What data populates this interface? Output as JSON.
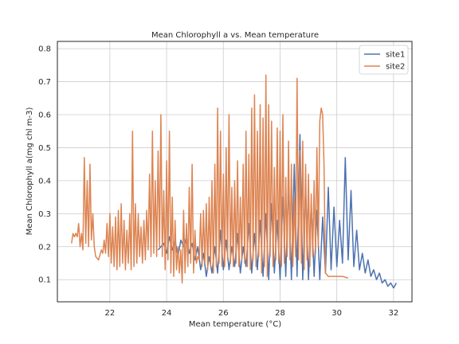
{
  "chart_data": {
    "type": "line",
    "title": "Mean Chlorophyll a vs. Mean temperature",
    "xlabel": "Mean temperature (°C)",
    "ylabel": "Mean Chlorophyll a(mg chl m-3)",
    "xlim": [
      20.15,
      32.65
    ],
    "ylim": [
      0.033,
      0.822
    ],
    "xticks": [
      22,
      24,
      26,
      28,
      30,
      32
    ],
    "yticks": [
      0.1,
      0.2,
      0.3,
      0.4,
      0.5,
      0.6,
      0.7,
      0.8
    ],
    "xtick_labels": [
      "22",
      "24",
      "26",
      "28",
      "30",
      "32"
    ],
    "ytick_labels": [
      "0.1",
      "0.2",
      "0.3",
      "0.4",
      "0.5",
      "0.6",
      "0.7",
      "0.8"
    ],
    "grid": true,
    "legend_position": "top-right",
    "series": [
      {
        "name": "site1",
        "color": "#4c72b0",
        "points": [
          [
            23.7,
            0.19
          ],
          [
            23.9,
            0.21
          ],
          [
            24.0,
            0.18
          ],
          [
            24.1,
            0.23
          ],
          [
            24.2,
            0.19
          ],
          [
            24.3,
            0.22
          ],
          [
            24.4,
            0.17
          ],
          [
            24.5,
            0.22
          ],
          [
            24.6,
            0.2
          ],
          [
            24.7,
            0.23
          ],
          [
            24.8,
            0.18
          ],
          [
            24.9,
            0.21
          ],
          [
            25.0,
            0.16
          ],
          [
            25.1,
            0.2
          ],
          [
            25.2,
            0.13
          ],
          [
            25.3,
            0.18
          ],
          [
            25.4,
            0.11
          ],
          [
            25.5,
            0.17
          ],
          [
            25.6,
            0.12
          ],
          [
            25.7,
            0.2
          ],
          [
            25.8,
            0.12
          ],
          [
            25.9,
            0.25
          ],
          [
            26.0,
            0.13
          ],
          [
            26.1,
            0.22
          ],
          [
            26.2,
            0.13
          ],
          [
            26.3,
            0.2
          ],
          [
            26.4,
            0.14
          ],
          [
            26.5,
            0.24
          ],
          [
            26.6,
            0.12
          ],
          [
            26.7,
            0.2
          ],
          [
            26.8,
            0.14
          ],
          [
            26.9,
            0.27
          ],
          [
            27.0,
            0.12
          ],
          [
            27.1,
            0.24
          ],
          [
            27.2,
            0.13
          ],
          [
            27.3,
            0.28
          ],
          [
            27.4,
            0.11
          ],
          [
            27.5,
            0.3
          ],
          [
            27.6,
            0.1
          ],
          [
            27.7,
            0.33
          ],
          [
            27.8,
            0.12
          ],
          [
            27.9,
            0.28
          ],
          [
            28.0,
            0.1
          ],
          [
            28.1,
            0.35
          ],
          [
            28.2,
            0.11
          ],
          [
            28.3,
            0.39
          ],
          [
            28.4,
            0.1
          ],
          [
            28.5,
            0.45
          ],
          [
            28.6,
            0.11
          ],
          [
            28.7,
            0.54
          ],
          [
            28.8,
            0.1
          ],
          [
            28.9,
            0.38
          ],
          [
            29.0,
            0.1
          ],
          [
            29.1,
            0.33
          ],
          [
            29.2,
            0.11
          ],
          [
            29.3,
            0.31
          ],
          [
            29.4,
            0.1
          ],
          [
            29.5,
            0.29
          ],
          [
            29.6,
            0.12
          ],
          [
            29.7,
            0.38
          ],
          [
            29.8,
            0.13
          ],
          [
            29.9,
            0.32
          ],
          [
            30.0,
            0.14
          ],
          [
            30.1,
            0.28
          ],
          [
            30.2,
            0.15
          ],
          [
            30.3,
            0.47
          ],
          [
            30.4,
            0.16
          ],
          [
            30.5,
            0.37
          ],
          [
            30.6,
            0.14
          ],
          [
            30.7,
            0.25
          ],
          [
            30.8,
            0.13
          ],
          [
            30.9,
            0.18
          ],
          [
            31.0,
            0.12
          ],
          [
            31.1,
            0.16
          ],
          [
            31.2,
            0.11
          ],
          [
            31.3,
            0.13
          ],
          [
            31.4,
            0.1
          ],
          [
            31.5,
            0.12
          ],
          [
            31.6,
            0.09
          ],
          [
            31.7,
            0.1
          ],
          [
            31.8,
            0.08
          ],
          [
            31.9,
            0.09
          ],
          [
            32.0,
            0.075
          ],
          [
            32.1,
            0.09
          ]
        ]
      },
      {
        "name": "site2",
        "color": "#dd8452",
        "points": [
          [
            20.65,
            0.21
          ],
          [
            20.7,
            0.24
          ],
          [
            20.75,
            0.23
          ],
          [
            20.8,
            0.24
          ],
          [
            20.85,
            0.23
          ],
          [
            20.9,
            0.27
          ],
          [
            20.95,
            0.2
          ],
          [
            21.0,
            0.24
          ],
          [
            21.05,
            0.19
          ],
          [
            21.1,
            0.47
          ],
          [
            21.15,
            0.21
          ],
          [
            21.2,
            0.4
          ],
          [
            21.25,
            0.2
          ],
          [
            21.3,
            0.45
          ],
          [
            21.35,
            0.22
          ],
          [
            21.4,
            0.3
          ],
          [
            21.45,
            0.2
          ],
          [
            21.5,
            0.17
          ],
          [
            21.6,
            0.16
          ],
          [
            21.7,
            0.19
          ],
          [
            21.75,
            0.18
          ],
          [
            21.8,
            0.22
          ],
          [
            21.85,
            0.18
          ],
          [
            21.9,
            0.27
          ],
          [
            21.95,
            0.17
          ],
          [
            22.0,
            0.3
          ],
          [
            22.05,
            0.15
          ],
          [
            22.1,
            0.26
          ],
          [
            22.15,
            0.14
          ],
          [
            22.2,
            0.29
          ],
          [
            22.25,
            0.13
          ],
          [
            22.3,
            0.31
          ],
          [
            22.35,
            0.14
          ],
          [
            22.4,
            0.33
          ],
          [
            22.45,
            0.15
          ],
          [
            22.5,
            0.28
          ],
          [
            22.55,
            0.13
          ],
          [
            22.6,
            0.25
          ],
          [
            22.65,
            0.15
          ],
          [
            22.7,
            0.3
          ],
          [
            22.75,
            0.13
          ],
          [
            22.8,
            0.55
          ],
          [
            22.85,
            0.14
          ],
          [
            22.9,
            0.33
          ],
          [
            22.95,
            0.15
          ],
          [
            23.0,
            0.3
          ],
          [
            23.05,
            0.17
          ],
          [
            23.1,
            0.26
          ],
          [
            23.15,
            0.15
          ],
          [
            23.2,
            0.28
          ],
          [
            23.25,
            0.16
          ],
          [
            23.3,
            0.31
          ],
          [
            23.35,
            0.19
          ],
          [
            23.4,
            0.42
          ],
          [
            23.45,
            0.17
          ],
          [
            23.5,
            0.55
          ],
          [
            23.55,
            0.18
          ],
          [
            23.6,
            0.4
          ],
          [
            23.65,
            0.17
          ],
          [
            23.7,
            0.49
          ],
          [
            23.75,
            0.2
          ],
          [
            23.8,
            0.6
          ],
          [
            23.85,
            0.17
          ],
          [
            23.9,
            0.37
          ],
          [
            23.95,
            0.13
          ],
          [
            24.0,
            0.46
          ],
          [
            24.05,
            0.16
          ],
          [
            24.1,
            0.55
          ],
          [
            24.15,
            0.12
          ],
          [
            24.2,
            0.35
          ],
          [
            24.25,
            0.11
          ],
          [
            24.3,
            0.28
          ],
          [
            24.35,
            0.13
          ],
          [
            24.4,
            0.2
          ],
          [
            24.45,
            0.12
          ],
          [
            24.5,
            0.19
          ],
          [
            24.55,
            0.09
          ],
          [
            24.6,
            0.31
          ],
          [
            24.65,
            0.12
          ],
          [
            24.7,
            0.27
          ],
          [
            24.75,
            0.14
          ],
          [
            24.8,
            0.38
          ],
          [
            24.85,
            0.15
          ],
          [
            24.9,
            0.45
          ],
          [
            24.95,
            0.12
          ],
          [
            25.0,
            0.25
          ],
          [
            25.05,
            0.15
          ],
          [
            25.1,
            0.17
          ],
          [
            25.15,
            0.16
          ],
          [
            25.2,
            0.3
          ],
          [
            25.25,
            0.14
          ],
          [
            25.3,
            0.31
          ],
          [
            25.35,
            0.15
          ],
          [
            25.4,
            0.33
          ],
          [
            25.45,
            0.13
          ],
          [
            25.5,
            0.35
          ],
          [
            25.55,
            0.14
          ],
          [
            25.6,
            0.4
          ],
          [
            25.65,
            0.12
          ],
          [
            25.7,
            0.45
          ],
          [
            25.75,
            0.14
          ],
          [
            25.8,
            0.62
          ],
          [
            25.85,
            0.15
          ],
          [
            25.9,
            0.55
          ],
          [
            25.95,
            0.14
          ],
          [
            26.0,
            0.42
          ],
          [
            26.05,
            0.14
          ],
          [
            26.1,
            0.5
          ],
          [
            26.15,
            0.16
          ],
          [
            26.2,
            0.6
          ],
          [
            26.25,
            0.15
          ],
          [
            26.3,
            0.38
          ],
          [
            26.35,
            0.14
          ],
          [
            26.4,
            0.4
          ],
          [
            26.45,
            0.15
          ],
          [
            26.5,
            0.46
          ],
          [
            26.55,
            0.14
          ],
          [
            26.6,
            0.35
          ],
          [
            26.65,
            0.16
          ],
          [
            26.7,
            0.45
          ],
          [
            26.75,
            0.15
          ],
          [
            26.8,
            0.55
          ],
          [
            26.85,
            0.14
          ],
          [
            26.9,
            0.48
          ],
          [
            26.95,
            0.13
          ],
          [
            27.0,
            0.62
          ],
          [
            27.05,
            0.16
          ],
          [
            27.1,
            0.66
          ],
          [
            27.15,
            0.14
          ],
          [
            27.2,
            0.55
          ],
          [
            27.25,
            0.17
          ],
          [
            27.3,
            0.63
          ],
          [
            27.35,
            0.12
          ],
          [
            27.4,
            0.59
          ],
          [
            27.45,
            0.14
          ],
          [
            27.5,
            0.72
          ],
          [
            27.55,
            0.11
          ],
          [
            27.6,
            0.63
          ],
          [
            27.65,
            0.17
          ],
          [
            27.7,
            0.58
          ],
          [
            27.75,
            0.14
          ],
          [
            27.8,
            0.44
          ],
          [
            27.85,
            0.16
          ],
          [
            27.9,
            0.56
          ],
          [
            27.95,
            0.15
          ],
          [
            28.0,
            0.55
          ],
          [
            28.05,
            0.14
          ],
          [
            28.1,
            0.6
          ],
          [
            28.15,
            0.15
          ],
          [
            28.2,
            0.41
          ],
          [
            28.25,
            0.17
          ],
          [
            28.3,
            0.52
          ],
          [
            28.35,
            0.16
          ],
          [
            28.4,
            0.45
          ],
          [
            28.45,
            0.14
          ],
          [
            28.5,
            0.35
          ],
          [
            28.55,
            0.17
          ],
          [
            28.6,
            0.71
          ],
          [
            28.65,
            0.16
          ],
          [
            28.7,
            0.49
          ],
          [
            28.75,
            0.15
          ],
          [
            28.8,
            0.52
          ],
          [
            28.85,
            0.13
          ],
          [
            28.9,
            0.45
          ],
          [
            28.95,
            0.16
          ],
          [
            29.0,
            0.42
          ],
          [
            29.05,
            0.14
          ],
          [
            29.1,
            0.36
          ],
          [
            29.15,
            0.17
          ],
          [
            29.2,
            0.4
          ],
          [
            29.25,
            0.18
          ],
          [
            29.3,
            0.5
          ],
          [
            29.35,
            0.2
          ],
          [
            29.4,
            0.58
          ],
          [
            29.45,
            0.62
          ],
          [
            29.5,
            0.6
          ],
          [
            29.55,
            0.45
          ],
          [
            29.6,
            0.12
          ],
          [
            29.7,
            0.11
          ],
          [
            29.8,
            0.11
          ],
          [
            30.0,
            0.11
          ],
          [
            30.2,
            0.11
          ],
          [
            30.4,
            0.105
          ]
        ]
      }
    ]
  }
}
